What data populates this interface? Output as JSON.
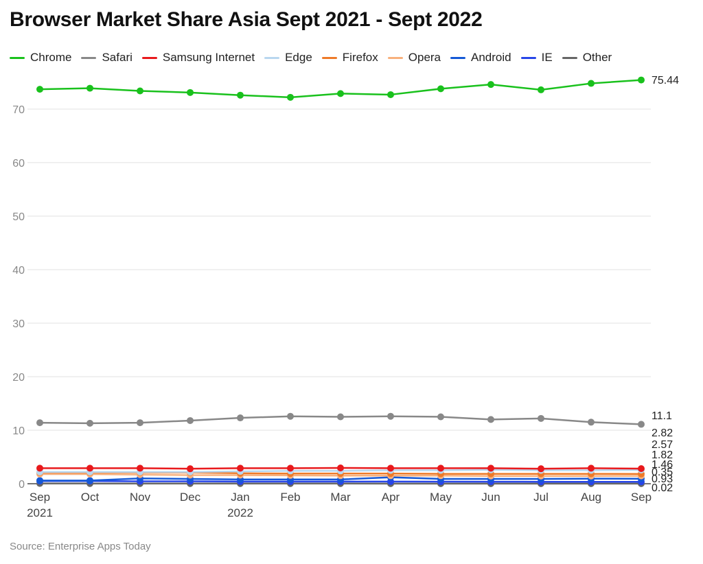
{
  "title": "Browser Market Share Asia Sept 2021 - Sept 2022",
  "source": "Source: Enterprise Apps Today",
  "chart_data": {
    "type": "line",
    "title": "Browser Market Share Asia Sept 2021 - Sept 2022",
    "xlabel": "",
    "ylabel": "",
    "x": [
      "Sep 2021",
      "Oct 2021",
      "Nov 2021",
      "Dec 2021",
      "Jan 2022",
      "Feb 2022",
      "Mar 2022",
      "Apr 2022",
      "May 2022",
      "Jun 2022",
      "Jul 2022",
      "Aug 2022",
      "Sep 2022"
    ],
    "x_tick_labels": [
      [
        "Sep",
        "2021"
      ],
      [
        "Oct"
      ],
      [
        "Nov"
      ],
      [
        "Dec"
      ],
      [
        "Jan",
        "2022"
      ],
      [
        "Feb"
      ],
      [
        "Mar"
      ],
      [
        "Apr"
      ],
      [
        "May"
      ],
      [
        "Jun"
      ],
      [
        "Jul"
      ],
      [
        "Aug"
      ],
      [
        "Sep"
      ]
    ],
    "y_ticks": [
      0,
      10,
      20,
      30,
      40,
      50,
      60,
      70
    ],
    "ylim": [
      0,
      77
    ],
    "grid": true,
    "legend_position": "top",
    "series": [
      {
        "name": "Chrome",
        "color": "#19c11c",
        "values": [
          73.7,
          73.9,
          73.4,
          73.1,
          72.6,
          72.2,
          72.9,
          72.7,
          73.8,
          74.6,
          73.6,
          74.8,
          75.44
        ],
        "end_label": "75.44"
      },
      {
        "name": "Safari",
        "color": "#888888",
        "values": [
          11.4,
          11.3,
          11.4,
          11.8,
          12.3,
          12.6,
          12.5,
          12.6,
          12.5,
          12.0,
          12.2,
          11.5,
          11.1
        ],
        "end_label": "11.1"
      },
      {
        "name": "Samsung Internet",
        "color": "#e8191c",
        "values": [
          2.9,
          2.9,
          2.9,
          2.8,
          2.9,
          2.9,
          2.95,
          2.9,
          2.9,
          2.9,
          2.8,
          2.9,
          2.82
        ],
        "end_label": "2.82"
      },
      {
        "name": "Edge",
        "color": "#b8d7ef",
        "values": [
          2.2,
          2.2,
          2.2,
          2.2,
          2.3,
          2.4,
          2.4,
          2.5,
          2.5,
          2.6,
          2.5,
          2.5,
          2.57
        ],
        "end_label": "2.57"
      },
      {
        "name": "Firefox",
        "color": "#ee7a28",
        "values": [
          2.1,
          2.1,
          2.1,
          2.1,
          1.95,
          1.9,
          1.9,
          1.9,
          1.85,
          1.85,
          1.85,
          1.85,
          1.82
        ],
        "end_label": "1.82"
      },
      {
        "name": "Opera",
        "color": "#f8b07c",
        "values": [
          1.8,
          1.8,
          1.7,
          1.6,
          1.6,
          1.55,
          1.5,
          1.5,
          1.5,
          1.45,
          1.45,
          1.45,
          1.46
        ],
        "end_label": "1.46"
      },
      {
        "name": "Android",
        "color": "#1559d6",
        "values": [
          0.6,
          0.6,
          1.0,
          0.9,
          0.8,
          0.8,
          0.8,
          1.2,
          0.9,
          0.9,
          0.9,
          0.95,
          0.93
        ],
        "end_label": "0.93"
      },
      {
        "name": "IE",
        "color": "#2745e8",
        "values": [
          0.5,
          0.5,
          0.45,
          0.45,
          0.4,
          0.4,
          0.4,
          0.4,
          0.38,
          0.37,
          0.36,
          0.35,
          0.35
        ],
        "end_label": "0.35"
      },
      {
        "name": "Other",
        "color": "#666666",
        "values": [
          0.05,
          0.04,
          0.03,
          0.03,
          0.03,
          0.03,
          0.03,
          0.02,
          0.02,
          0.02,
          0.02,
          0.02,
          0.02
        ],
        "end_label": "0.02"
      }
    ]
  }
}
